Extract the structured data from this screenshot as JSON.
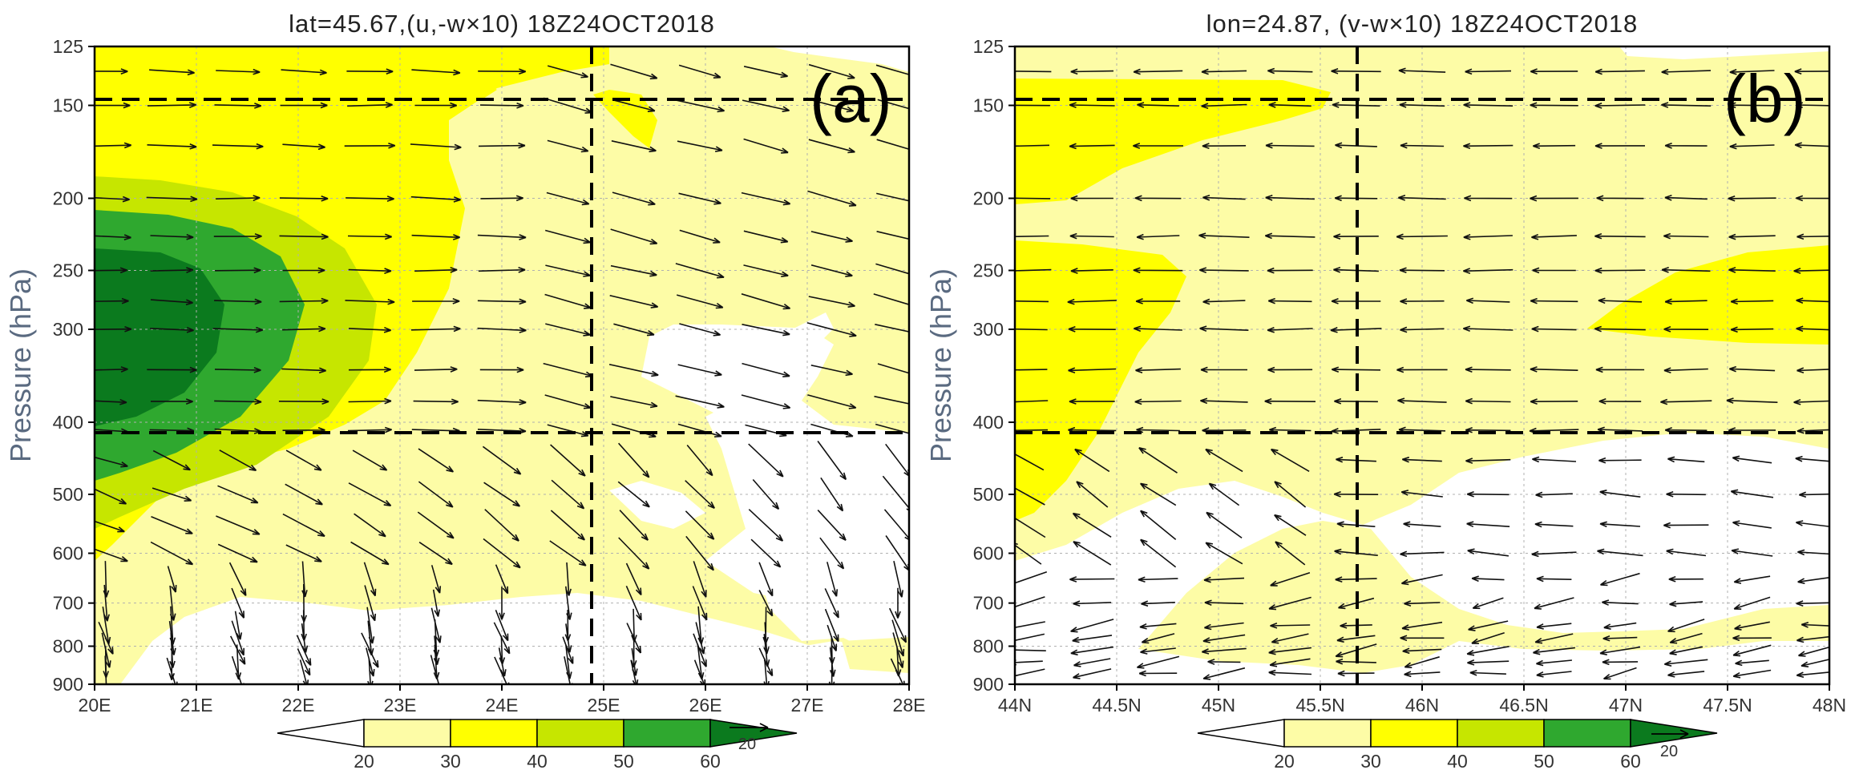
{
  "chart_data": [
    {
      "type": "contour-vector",
      "panel_label": "(a)",
      "title": "lat=45.67,(u,-w×10) 18Z24OCT2018",
      "xlabel": "",
      "ylabel": "Pressure (hPa)",
      "x_unit": "deg E",
      "xlim": [
        20,
        28
      ],
      "x_ticks": [
        20,
        21,
        22,
        23,
        24,
        25,
        26,
        27,
        28
      ],
      "x_tick_labels": [
        "20E",
        "21E",
        "22E",
        "23E",
        "24E",
        "25E",
        "26E",
        "27E",
        "28E"
      ],
      "ylim": [
        900,
        125
      ],
      "y_scale": "log",
      "y_ticks": [
        125,
        150,
        200,
        250,
        300,
        400,
        500,
        600,
        700,
        800,
        900
      ],
      "y_tick_labels": [
        "125",
        "150",
        "200",
        "250",
        "300",
        "400",
        "500",
        "600",
        "700",
        "800",
        "900"
      ],
      "crosshair": {
        "x": 24.87,
        "y": 150,
        "y2": 410
      },
      "contour_levels": [
        20,
        30,
        40,
        50,
        60
      ],
      "legend_labels": [
        "20",
        "30",
        "40",
        "50",
        "60"
      ],
      "reference_vector": "20",
      "description_regions": "jet maximum (>60) centered near 20E-21E, 250-350 hPa"
    },
    {
      "type": "contour-vector",
      "panel_label": "(b)",
      "title": "lon=24.87, (v-w×10) 18Z24OCT2018",
      "xlabel": "",
      "ylabel": "Pressure (hPa)",
      "x_unit": "deg N",
      "xlim": [
        44,
        48
      ],
      "x_ticks": [
        44,
        44.5,
        45,
        45.5,
        46,
        46.5,
        47,
        47.5,
        48
      ],
      "x_tick_labels": [
        "44N",
        "44.5N",
        "45N",
        "45.5N",
        "46N",
        "46.5N",
        "47N",
        "47.5N",
        "48N"
      ],
      "ylim": [
        900,
        125
      ],
      "y_scale": "log",
      "y_ticks": [
        125,
        150,
        200,
        250,
        300,
        400,
        500,
        600,
        700,
        800,
        900
      ],
      "y_tick_labels": [
        "125",
        "150",
        "200",
        "250",
        "300",
        "400",
        "500",
        "600",
        "700",
        "800",
        "900"
      ],
      "crosshair": {
        "x": 45.67,
        "y": 150,
        "y2": 410
      },
      "contour_levels": [
        20,
        30,
        40,
        50,
        60
      ],
      "legend_labels": [
        "20",
        "30",
        "40",
        "50",
        "60"
      ],
      "reference_vector": "20"
    }
  ],
  "colors": {
    "c20": "#fdfca6",
    "c30": "#ffff00",
    "c40": "#c6e600",
    "c50": "#2fa82f",
    "c60": "#0b7a1e",
    "dash": "#000000",
    "grid": "#b0b0b0"
  }
}
